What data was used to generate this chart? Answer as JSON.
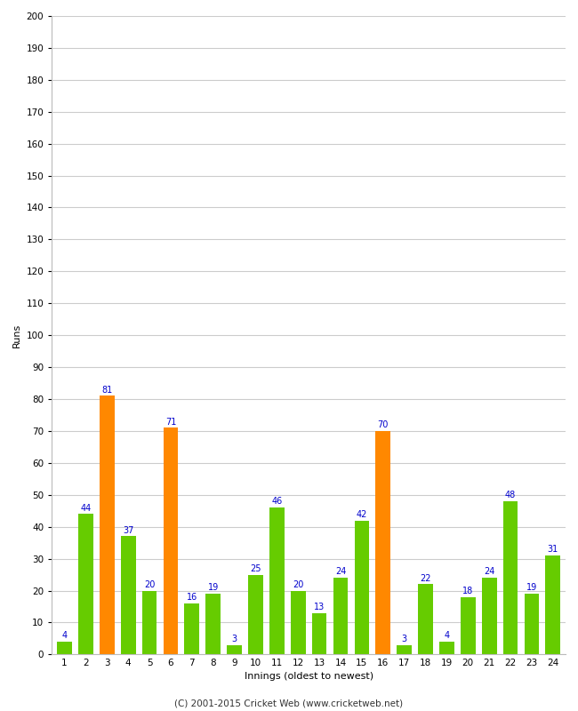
{
  "xlabel": "Innings (oldest to newest)",
  "ylabel": "Runs",
  "categories": [
    1,
    2,
    3,
    4,
    5,
    6,
    7,
    8,
    9,
    10,
    11,
    12,
    13,
    14,
    15,
    16,
    17,
    18,
    19,
    20,
    21,
    22,
    23,
    24
  ],
  "values": [
    4,
    44,
    81,
    37,
    20,
    71,
    16,
    19,
    3,
    25,
    46,
    20,
    13,
    24,
    42,
    70,
    3,
    22,
    4,
    18,
    24,
    48,
    19,
    31
  ],
  "colors": [
    "#66cc00",
    "#66cc00",
    "#ff8800",
    "#66cc00",
    "#66cc00",
    "#ff8800",
    "#66cc00",
    "#66cc00",
    "#66cc00",
    "#66cc00",
    "#66cc00",
    "#66cc00",
    "#66cc00",
    "#66cc00",
    "#66cc00",
    "#ff8800",
    "#66cc00",
    "#66cc00",
    "#66cc00",
    "#66cc00",
    "#66cc00",
    "#66cc00",
    "#66cc00",
    "#66cc00"
  ],
  "ylim": [
    0,
    200
  ],
  "yticks": [
    0,
    10,
    20,
    30,
    40,
    50,
    60,
    70,
    80,
    90,
    100,
    110,
    120,
    130,
    140,
    150,
    160,
    170,
    180,
    190,
    200
  ],
  "label_color": "#0000cc",
  "label_fontsize": 7,
  "axis_label_fontsize": 8,
  "tick_fontsize": 7.5,
  "background_color": "#ffffff",
  "plot_background": "#ffffff",
  "grid_color": "#cccccc",
  "footer": "(C) 2001-2015 Cricket Web (www.cricketweb.net)"
}
